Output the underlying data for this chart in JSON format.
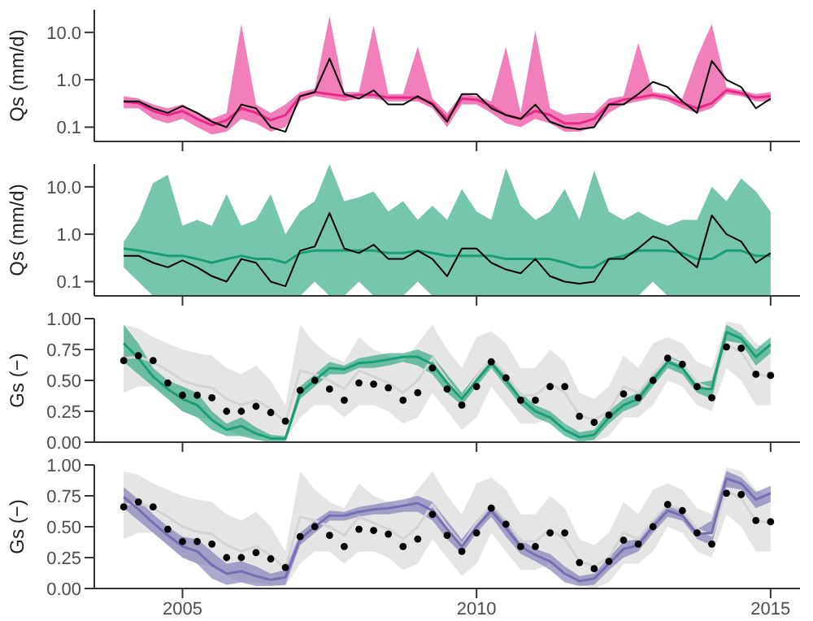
{
  "chart_data": [
    {
      "type": "line",
      "ylabel": "Qs (mm/d)",
      "log": "y",
      "grid": false,
      "legend": false,
      "tick_labels": "y",
      "xlim": [
        2003.5,
        2015.5
      ],
      "xticks": [
        2005,
        2010,
        2015
      ],
      "ylim": [
        0.05,
        30
      ],
      "yticks": [
        {
          "value": 0.1,
          "label": "0.1"
        },
        {
          "value": 1,
          "label": "1.0"
        },
        {
          "value": 10,
          "label": "10.0"
        }
      ],
      "x": [
        2004,
        2004.25,
        2004.5,
        2004.75,
        2005,
        2005.25,
        2005.5,
        2005.75,
        2006,
        2006.25,
        2006.5,
        2006.75,
        2007,
        2007.25,
        2007.5,
        2007.75,
        2008,
        2008.25,
        2008.5,
        2008.75,
        2009,
        2009.25,
        2009.5,
        2009.75,
        2010,
        2010.25,
        2010.5,
        2010.75,
        2011,
        2011.25,
        2011.5,
        2011.75,
        2012,
        2012.25,
        2012.5,
        2012.75,
        2013,
        2013.25,
        2013.5,
        2013.75,
        2014,
        2014.25,
        2014.5,
        2014.75,
        2015
      ],
      "series": [
        {
          "color": "#e7298a",
          "values": [
            0.35,
            0.32,
            0.22,
            0.18,
            0.22,
            0.15,
            0.11,
            0.14,
            0.25,
            0.2,
            0.14,
            0.18,
            0.45,
            0.55,
            0.5,
            0.45,
            0.48,
            0.48,
            0.42,
            0.42,
            0.42,
            0.32,
            0.15,
            0.4,
            0.38,
            0.28,
            0.18,
            0.15,
            0.22,
            0.18,
            0.12,
            0.12,
            0.15,
            0.3,
            0.38,
            0.42,
            0.48,
            0.42,
            0.32,
            0.25,
            0.32,
            0.6,
            0.52,
            0.42,
            0.45
          ],
          "lower": [
            0.25,
            0.25,
            0.15,
            0.12,
            0.15,
            0.1,
            0.07,
            0.08,
            0.15,
            0.12,
            0.08,
            0.1,
            0.35,
            0.45,
            0.4,
            0.35,
            0.4,
            0.4,
            0.35,
            0.35,
            0.35,
            0.25,
            0.1,
            0.3,
            0.3,
            0.2,
            0.12,
            0.1,
            0.15,
            0.12,
            0.08,
            0.08,
            0.1,
            0.2,
            0.3,
            0.35,
            0.4,
            0.35,
            0.25,
            0.2,
            0.25,
            0.5,
            0.45,
            0.35,
            0.35
          ],
          "upper": [
            0.45,
            0.4,
            0.3,
            0.25,
            0.3,
            0.2,
            0.15,
            0.2,
            15,
            0.3,
            0.2,
            0.3,
            0.55,
            0.65,
            22,
            0.55,
            0.55,
            14,
            0.5,
            0.5,
            5,
            0.4,
            0.2,
            0.5,
            0.45,
            0.35,
            5,
            0.2,
            11,
            0.25,
            0.18,
            0.2,
            0.2,
            0.4,
            0.45,
            6,
            0.55,
            0.5,
            0.4,
            3,
            15,
            0.7,
            0.6,
            0.5,
            0.55
          ]
        },
        {
          "color": "#000000",
          "values": [
            0.35,
            0.35,
            0.25,
            0.2,
            0.28,
            0.2,
            0.13,
            0.1,
            0.3,
            0.25,
            0.1,
            0.08,
            0.45,
            0.55,
            2.8,
            0.5,
            0.4,
            0.6,
            0.3,
            0.3,
            0.45,
            0.3,
            0.13,
            0.5,
            0.5,
            0.25,
            0.18,
            0.15,
            0.3,
            0.13,
            0.1,
            0.09,
            0.1,
            0.3,
            0.3,
            0.5,
            0.9,
            0.7,
            0.35,
            0.2,
            2.5,
            1,
            0.7,
            0.25,
            0.4
          ]
        }
      ]
    },
    {
      "type": "line",
      "ylabel": "Qs (mm/d)",
      "log": "y",
      "grid": false,
      "legend": false,
      "tick_labels": "y",
      "xlim": [
        2003.5,
        2015.5
      ],
      "xticks": [
        2005,
        2010,
        2015
      ],
      "ylim": [
        0.05,
        30
      ],
      "yticks": [
        {
          "value": 0.1,
          "label": "0.1"
        },
        {
          "value": 1,
          "label": "1.0"
        },
        {
          "value": 10,
          "label": "10.0"
        }
      ],
      "x": [
        2004,
        2004.25,
        2004.5,
        2004.75,
        2005,
        2005.25,
        2005.5,
        2005.75,
        2006,
        2006.25,
        2006.5,
        2006.75,
        2007,
        2007.25,
        2007.5,
        2007.75,
        2008,
        2008.25,
        2008.5,
        2008.75,
        2009,
        2009.25,
        2009.5,
        2009.75,
        2010,
        2010.25,
        2010.5,
        2010.75,
        2011,
        2011.25,
        2011.5,
        2011.75,
        2012,
        2012.25,
        2012.5,
        2012.75,
        2013,
        2013.25,
        2013.5,
        2013.75,
        2014,
        2014.25,
        2014.5,
        2014.75,
        2015
      ],
      "series": [
        {
          "color": "#1b9e77",
          "values": [
            0.5,
            0.45,
            0.4,
            0.35,
            0.35,
            0.3,
            0.25,
            0.3,
            0.35,
            0.3,
            0.3,
            0.25,
            0.4,
            0.45,
            0.45,
            0.45,
            0.45,
            0.45,
            0.4,
            0.4,
            0.45,
            0.4,
            0.35,
            0.35,
            0.35,
            0.35,
            0.3,
            0.3,
            0.3,
            0.3,
            0.25,
            0.2,
            0.2,
            0.3,
            0.35,
            0.45,
            0.45,
            0.45,
            0.4,
            0.3,
            0.3,
            0.45,
            0.45,
            0.35,
            0.35
          ],
          "lower": [
            0.2,
            0.1,
            0.05,
            0.05,
            0.05,
            0.05,
            0.05,
            0.05,
            0.05,
            0.05,
            0.05,
            0.05,
            0.05,
            0.1,
            0.05,
            0.05,
            0.1,
            0.05,
            0.05,
            0.05,
            0.1,
            0.05,
            0.05,
            0.05,
            0.05,
            0.05,
            0.05,
            0.05,
            0.05,
            0.05,
            0.05,
            0.05,
            0.05,
            0.05,
            0.05,
            0.05,
            0.1,
            0.05,
            0.05,
            0.05,
            0.05,
            0.05,
            0.05,
            0.05,
            0.05
          ],
          "upper": [
            0.7,
            2,
            12,
            18,
            1.5,
            2,
            1.5,
            7,
            1.5,
            2,
            7,
            1,
            3,
            5,
            30,
            5,
            6,
            8,
            3,
            5,
            2,
            4,
            2,
            9,
            3,
            2,
            25,
            4,
            2,
            3,
            9,
            2,
            22,
            3,
            2,
            3,
            2,
            1.5,
            2,
            2,
            10,
            5,
            15,
            8,
            3
          ]
        },
        {
          "color": "#000000",
          "values": [
            0.35,
            0.35,
            0.25,
            0.2,
            0.28,
            0.2,
            0.13,
            0.1,
            0.3,
            0.25,
            0.1,
            0.08,
            0.45,
            0.55,
            2.8,
            0.5,
            0.4,
            0.6,
            0.3,
            0.3,
            0.45,
            0.3,
            0.13,
            0.5,
            0.5,
            0.25,
            0.18,
            0.15,
            0.3,
            0.13,
            0.1,
            0.09,
            0.1,
            0.3,
            0.3,
            0.5,
            0.9,
            0.7,
            0.35,
            0.2,
            2.5,
            1,
            0.7,
            0.25,
            0.4
          ]
        }
      ]
    },
    {
      "type": "scatter",
      "ylabel": "Gs (−)",
      "grid": false,
      "legend": false,
      "marker": "circle",
      "tick_labels": "y",
      "xlim": [
        2003.5,
        2015.5
      ],
      "xticks": [
        2005,
        2010,
        2015
      ],
      "ylim": [
        0,
        1
      ],
      "yticks": [
        {
          "value": 0,
          "label": "0.00"
        },
        {
          "value": 0.25,
          "label": "0.25"
        },
        {
          "value": 0.5,
          "label": "0.50"
        },
        {
          "value": 0.75,
          "label": "0.75"
        },
        {
          "value": 1,
          "label": "1.00"
        }
      ],
      "x": [
        2004,
        2004.25,
        2004.5,
        2004.75,
        2005,
        2005.25,
        2005.5,
        2005.75,
        2006,
        2006.25,
        2006.5,
        2006.75,
        2007,
        2007.25,
        2007.5,
        2007.75,
        2008,
        2008.25,
        2008.5,
        2008.75,
        2009,
        2009.25,
        2009.5,
        2009.75,
        2010,
        2010.25,
        2010.5,
        2010.75,
        2011,
        2011.25,
        2011.5,
        2011.75,
        2012,
        2012.25,
        2012.5,
        2012.75,
        2013,
        2013.25,
        2013.5,
        2013.75,
        2014,
        2014.25,
        2014.5,
        2014.75,
        2015
      ],
      "series": [
        {
          "type": "line",
          "color": "#d3d3d3",
          "values": [
            0.68,
            0.69,
            0.65,
            0.58,
            0.5,
            0.46,
            0.44,
            0.35,
            0.3,
            0.34,
            0.27,
            0.16,
            0.58,
            0.55,
            0.5,
            0.43,
            0.58,
            0.53,
            0.48,
            0.4,
            0.5,
            0.68,
            0.5,
            0.35,
            0.53,
            0.68,
            0.55,
            0.38,
            0.38,
            0.48,
            0.4,
            0.22,
            0.18,
            0.25,
            0.45,
            0.4,
            0.55,
            0.68,
            0.63,
            0.48,
            0.43,
            0.79,
            0.73,
            0.55,
            0.53
          ],
          "lower": [
            0.4,
            0.45,
            0.45,
            0.35,
            0.25,
            0.2,
            0.18,
            0.1,
            0.05,
            0.05,
            0.03,
            0.02,
            0.2,
            0.3,
            0.3,
            0.2,
            0.3,
            0.3,
            0.25,
            0.15,
            0.2,
            0.4,
            0.25,
            0.1,
            0.2,
            0.45,
            0.3,
            0.15,
            0.15,
            0.2,
            0.15,
            0.03,
            0,
            0.05,
            0.2,
            0.2,
            0.3,
            0.5,
            0.45,
            0.3,
            0.25,
            0.6,
            0.5,
            0.3,
            0.3
          ],
          "upper": [
            0.95,
            0.92,
            0.85,
            0.8,
            0.75,
            0.72,
            0.7,
            0.6,
            0.55,
            0.62,
            0.5,
            0.3,
            0.95,
            0.8,
            0.7,
            0.65,
            0.85,
            0.75,
            0.7,
            0.65,
            0.8,
            0.95,
            0.75,
            0.6,
            0.85,
            0.9,
            0.8,
            0.6,
            0.6,
            0.75,
            0.65,
            0.4,
            0.35,
            0.45,
            0.7,
            0.6,
            0.8,
            0.85,
            0.8,
            0.65,
            0.6,
            0.98,
            0.95,
            0.8,
            0.75
          ],
          "marker": "none"
        },
        {
          "type": "line",
          "color": "#1b9e77",
          "marker": "none",
          "values": [
            0.8,
            0.68,
            0.53,
            0.43,
            0.35,
            0.3,
            0.18,
            0.1,
            0.13,
            0.07,
            0.03,
            0.03,
            0.4,
            0.5,
            0.6,
            0.59,
            0.64,
            0.65,
            0.67,
            0.69,
            0.69,
            0.63,
            0.48,
            0.35,
            0.5,
            0.64,
            0.5,
            0.35,
            0.25,
            0.2,
            0.1,
            0.04,
            0.06,
            0.2,
            0.3,
            0.35,
            0.5,
            0.65,
            0.6,
            0.44,
            0.43,
            0.89,
            0.84,
            0.69,
            0.79
          ],
          "lower": [
            0.65,
            0.55,
            0.45,
            0.35,
            0.25,
            0.2,
            0.1,
            0.05,
            0.05,
            0.02,
            0,
            0,
            0.35,
            0.45,
            0.55,
            0.55,
            0.6,
            0.6,
            0.62,
            0.65,
            0.62,
            0.55,
            0.4,
            0.3,
            0.45,
            0.6,
            0.45,
            0.3,
            0.2,
            0.15,
            0.05,
            0,
            0.02,
            0.15,
            0.25,
            0.3,
            0.45,
            0.6,
            0.55,
            0.4,
            0.35,
            0.82,
            0.8,
            0.62,
            0.72
          ],
          "upper": [
            0.95,
            0.8,
            0.6,
            0.5,
            0.45,
            0.4,
            0.25,
            0.15,
            0.2,
            0.12,
            0.06,
            0.05,
            0.45,
            0.55,
            0.65,
            0.62,
            0.68,
            0.7,
            0.72,
            0.72,
            0.75,
            0.7,
            0.55,
            0.4,
            0.55,
            0.68,
            0.55,
            0.4,
            0.3,
            0.25,
            0.15,
            0.08,
            0.1,
            0.25,
            0.35,
            0.4,
            0.55,
            0.7,
            0.65,
            0.48,
            0.5,
            0.95,
            0.88,
            0.75,
            0.85
          ]
        },
        {
          "type": "scatter",
          "color": "#000000",
          "values": [
            0.66,
            0.7,
            0.66,
            0.48,
            0.38,
            0.38,
            0.36,
            0.25,
            0.25,
            0.29,
            0.24,
            0.17,
            0.42,
            0.5,
            0.43,
            0.34,
            0.48,
            0.47,
            0.44,
            0.34,
            0.4,
            0.6,
            0.43,
            0.3,
            0.45,
            0.65,
            0.52,
            0.34,
            0.34,
            0.45,
            0.45,
            0.21,
            0.16,
            0.22,
            0.39,
            0.36,
            0.5,
            0.68,
            0.63,
            0.45,
            0.36,
            0.77,
            0.76,
            0.55,
            0.54
          ]
        }
      ]
    },
    {
      "type": "scatter",
      "ylabel": "Gs (−)",
      "grid": false,
      "legend": false,
      "marker": "circle",
      "xlim": [
        2003.5,
        2015.5
      ],
      "xticks": [
        2005,
        2010,
        2015
      ],
      "ylim": [
        0,
        1
      ],
      "yticks": [
        {
          "value": 0,
          "label": "0.00"
        },
        {
          "value": 0.25,
          "label": "0.25"
        },
        {
          "value": 0.5,
          "label": "0.50"
        },
        {
          "value": 0.75,
          "label": "0.75"
        },
        {
          "value": 1,
          "label": "1.00"
        }
      ],
      "x": [
        2004,
        2004.25,
        2004.5,
        2004.75,
        2005,
        2005.25,
        2005.5,
        2005.75,
        2006,
        2006.25,
        2006.5,
        2006.75,
        2007,
        2007.25,
        2007.5,
        2007.75,
        2008,
        2008.25,
        2008.5,
        2008.75,
        2009,
        2009.25,
        2009.5,
        2009.75,
        2010,
        2010.25,
        2010.5,
        2010.75,
        2011,
        2011.25,
        2011.5,
        2011.75,
        2012,
        2012.25,
        2012.5,
        2012.75,
        2013,
        2013.25,
        2013.5,
        2013.75,
        2014,
        2014.25,
        2014.5,
        2014.75,
        2015
      ],
      "series": [
        {
          "type": "line",
          "color": "#d3d3d3",
          "values": [
            0.68,
            0.69,
            0.65,
            0.58,
            0.5,
            0.46,
            0.44,
            0.35,
            0.3,
            0.34,
            0.27,
            0.16,
            0.58,
            0.55,
            0.5,
            0.43,
            0.58,
            0.53,
            0.48,
            0.4,
            0.5,
            0.68,
            0.5,
            0.35,
            0.53,
            0.68,
            0.55,
            0.38,
            0.38,
            0.48,
            0.4,
            0.22,
            0.18,
            0.25,
            0.45,
            0.4,
            0.55,
            0.68,
            0.63,
            0.48,
            0.43,
            0.79,
            0.73,
            0.55,
            0.53
          ],
          "lower": [
            0.4,
            0.45,
            0.45,
            0.35,
            0.25,
            0.2,
            0.18,
            0.1,
            0.05,
            0.05,
            0.03,
            0.02,
            0.2,
            0.3,
            0.3,
            0.2,
            0.3,
            0.3,
            0.25,
            0.15,
            0.2,
            0.4,
            0.25,
            0.1,
            0.2,
            0.45,
            0.3,
            0.15,
            0.15,
            0.2,
            0.15,
            0.03,
            0,
            0.05,
            0.2,
            0.2,
            0.3,
            0.5,
            0.45,
            0.3,
            0.25,
            0.6,
            0.5,
            0.3,
            0.3
          ],
          "upper": [
            0.95,
            0.92,
            0.85,
            0.8,
            0.75,
            0.72,
            0.7,
            0.6,
            0.55,
            0.62,
            0.5,
            0.3,
            0.95,
            0.8,
            0.7,
            0.65,
            0.85,
            0.75,
            0.7,
            0.65,
            0.8,
            0.95,
            0.75,
            0.6,
            0.85,
            0.9,
            0.8,
            0.6,
            0.6,
            0.75,
            0.65,
            0.4,
            0.35,
            0.45,
            0.7,
            0.6,
            0.8,
            0.85,
            0.8,
            0.65,
            0.6,
            0.98,
            0.95,
            0.8,
            0.75
          ],
          "marker": "none"
        },
        {
          "type": "line",
          "color": "#7570b3",
          "marker": "none",
          "values": [
            0.74,
            0.64,
            0.53,
            0.43,
            0.34,
            0.3,
            0.19,
            0.12,
            0.14,
            0.1,
            0.07,
            0.09,
            0.4,
            0.5,
            0.59,
            0.59,
            0.62,
            0.64,
            0.65,
            0.67,
            0.69,
            0.63,
            0.48,
            0.34,
            0.5,
            0.63,
            0.49,
            0.34,
            0.27,
            0.22,
            0.12,
            0.06,
            0.08,
            0.2,
            0.32,
            0.35,
            0.5,
            0.63,
            0.59,
            0.44,
            0.45,
            0.89,
            0.85,
            0.72,
            0.77
          ],
          "lower": [
            0.65,
            0.55,
            0.45,
            0.35,
            0.25,
            0.2,
            0.08,
            0.03,
            0.05,
            0.02,
            0.02,
            0.03,
            0.35,
            0.45,
            0.55,
            0.55,
            0.58,
            0.6,
            0.6,
            0.62,
            0.62,
            0.55,
            0.4,
            0.28,
            0.45,
            0.58,
            0.42,
            0.28,
            0.22,
            0.15,
            0.05,
            0.02,
            0.03,
            0.15,
            0.25,
            0.3,
            0.45,
            0.58,
            0.55,
            0.4,
            0.35,
            0.82,
            0.8,
            0.65,
            0.7
          ],
          "upper": [
            0.82,
            0.72,
            0.6,
            0.5,
            0.42,
            0.4,
            0.3,
            0.2,
            0.22,
            0.18,
            0.12,
            0.15,
            0.45,
            0.55,
            0.63,
            0.62,
            0.66,
            0.68,
            0.7,
            0.72,
            0.75,
            0.7,
            0.55,
            0.4,
            0.55,
            0.68,
            0.55,
            0.4,
            0.32,
            0.28,
            0.18,
            0.1,
            0.12,
            0.25,
            0.38,
            0.4,
            0.55,
            0.68,
            0.63,
            0.48,
            0.55,
            0.95,
            0.9,
            0.78,
            0.83
          ]
        },
        {
          "type": "scatter",
          "color": "#000000",
          "values": [
            0.66,
            0.7,
            0.66,
            0.48,
            0.38,
            0.38,
            0.36,
            0.25,
            0.25,
            0.29,
            0.24,
            0.17,
            0.42,
            0.5,
            0.43,
            0.34,
            0.48,
            0.47,
            0.44,
            0.34,
            0.4,
            0.6,
            0.43,
            0.3,
            0.45,
            0.65,
            0.52,
            0.34,
            0.34,
            0.45,
            0.45,
            0.21,
            0.16,
            0.22,
            0.39,
            0.36,
            0.5,
            0.68,
            0.63,
            0.45,
            0.36,
            0.77,
            0.76,
            0.55,
            0.54
          ]
        }
      ]
    }
  ]
}
